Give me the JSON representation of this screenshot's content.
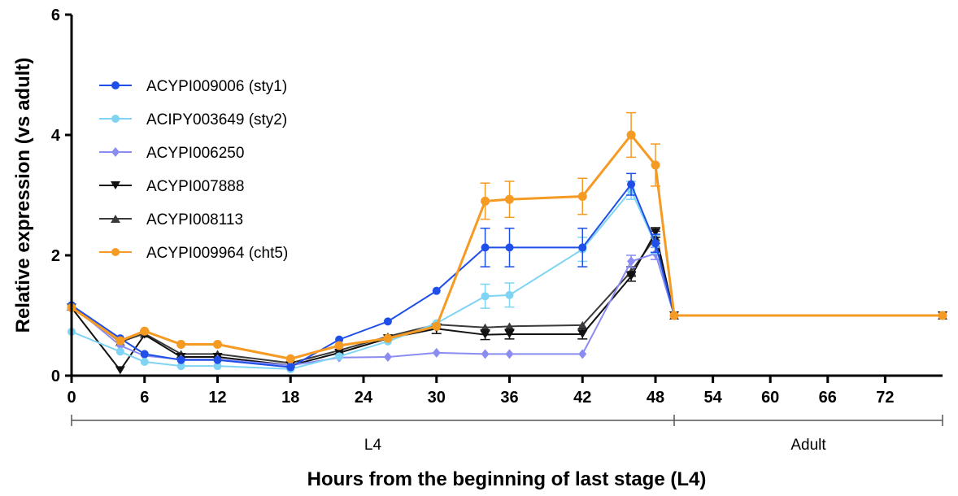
{
  "chart_data": {
    "type": "line",
    "title": "",
    "xlabel": "Hours from the beginning of last stage (L4)",
    "ylabel": "Relative expression (vs adult)",
    "xlim": [
      0,
      72
    ],
    "ylim": [
      0,
      6
    ],
    "xticks": [
      0,
      6,
      12,
      18,
      24,
      30,
      36,
      42,
      48,
      54,
      60,
      66,
      72
    ],
    "yticks": [
      0,
      2,
      4,
      6
    ],
    "axis_break": {
      "from": 50,
      "to": 72
    },
    "stages": [
      {
        "label": "L4",
        "start": 0,
        "end": 50
      },
      {
        "label": "Adult",
        "start": 50,
        "end": 72
      }
    ],
    "legend_position": "top-left",
    "grid": false,
    "x": [
      0,
      4,
      6,
      9,
      12,
      18,
      22,
      26,
      30,
      34,
      36,
      42,
      46,
      48,
      50,
      72
    ],
    "series": [
      {
        "name": "ACYPI009006 (sty1)",
        "color": "#1f4fe8",
        "marker": "circle",
        "values": [
          1.17,
          0.62,
          0.36,
          0.26,
          0.26,
          0.14,
          0.6,
          0.9,
          1.41,
          2.13,
          2.13,
          2.13,
          3.18,
          2.2,
          1.0,
          1.0
        ],
        "errors": [
          0.05,
          0.04,
          0.03,
          0.03,
          0.03,
          0.03,
          0.04,
          0.05,
          0.06,
          0.32,
          0.32,
          0.32,
          0.18,
          0.15,
          0.05,
          0.06
        ]
      },
      {
        "name": "ACIPY003649 (sty2)",
        "color": "#7fd4f4",
        "marker": "circle",
        "values": [
          0.73,
          0.4,
          0.23,
          0.16,
          0.16,
          0.11,
          0.32,
          0.57,
          0.87,
          1.32,
          1.34,
          2.1,
          3.08,
          2.18,
          1.0,
          1.0
        ],
        "errors": [
          0.04,
          0.04,
          0.03,
          0.03,
          0.03,
          0.02,
          0.04,
          0.05,
          0.05,
          0.2,
          0.2,
          0.2,
          0.15,
          0.15,
          0.05,
          0.06
        ]
      },
      {
        "name": "ACYPI006250",
        "color": "#8a8cf2",
        "marker": "diamond",
        "values": [
          1.17,
          0.5,
          0.33,
          0.27,
          0.27,
          0.17,
          0.3,
          0.31,
          0.38,
          0.36,
          0.36,
          0.36,
          1.9,
          2.03,
          1.0,
          1.0
        ],
        "errors": [
          0.04,
          0.04,
          0.03,
          0.03,
          0.03,
          0.02,
          0.03,
          0.03,
          0.03,
          0.03,
          0.03,
          0.03,
          0.1,
          0.1,
          0.05,
          0.06
        ]
      },
      {
        "name": "ACYPI007888",
        "color": "#111111",
        "marker": "triangle-down",
        "values": [
          1.13,
          0.09,
          0.68,
          0.31,
          0.31,
          0.17,
          0.38,
          0.62,
          0.78,
          0.68,
          0.69,
          0.69,
          1.65,
          2.38,
          1.0,
          1.0
        ],
        "errors": [
          0.04,
          0.03,
          0.04,
          0.03,
          0.03,
          0.02,
          0.04,
          0.04,
          0.08,
          0.08,
          0.08,
          0.08,
          0.08,
          0.08,
          0.05,
          0.06
        ]
      },
      {
        "name": "ACYPI008113",
        "color": "#3a3a3a",
        "marker": "triangle-up",
        "values": [
          1.15,
          0.56,
          0.7,
          0.36,
          0.36,
          0.21,
          0.42,
          0.65,
          0.85,
          0.8,
          0.82,
          0.84,
          1.73,
          2.3,
          1.0,
          1.0
        ],
        "errors": [
          0.04,
          0.04,
          0.04,
          0.03,
          0.03,
          0.02,
          0.04,
          0.04,
          0.06,
          0.06,
          0.06,
          0.06,
          0.08,
          0.1,
          0.05,
          0.06
        ]
      },
      {
        "name": "ACYPI009964 (cht5)",
        "color": "#f59a23",
        "marker": "circle",
        "values": [
          1.13,
          0.58,
          0.74,
          0.52,
          0.52,
          0.28,
          0.5,
          0.62,
          0.82,
          2.9,
          2.93,
          2.98,
          4.0,
          3.5,
          1.0,
          1.0
        ],
        "errors": [
          0.05,
          0.04,
          0.04,
          0.03,
          0.03,
          0.03,
          0.04,
          0.05,
          0.06,
          0.3,
          0.3,
          0.3,
          0.37,
          0.35,
          0.05,
          0.06
        ]
      }
    ]
  }
}
